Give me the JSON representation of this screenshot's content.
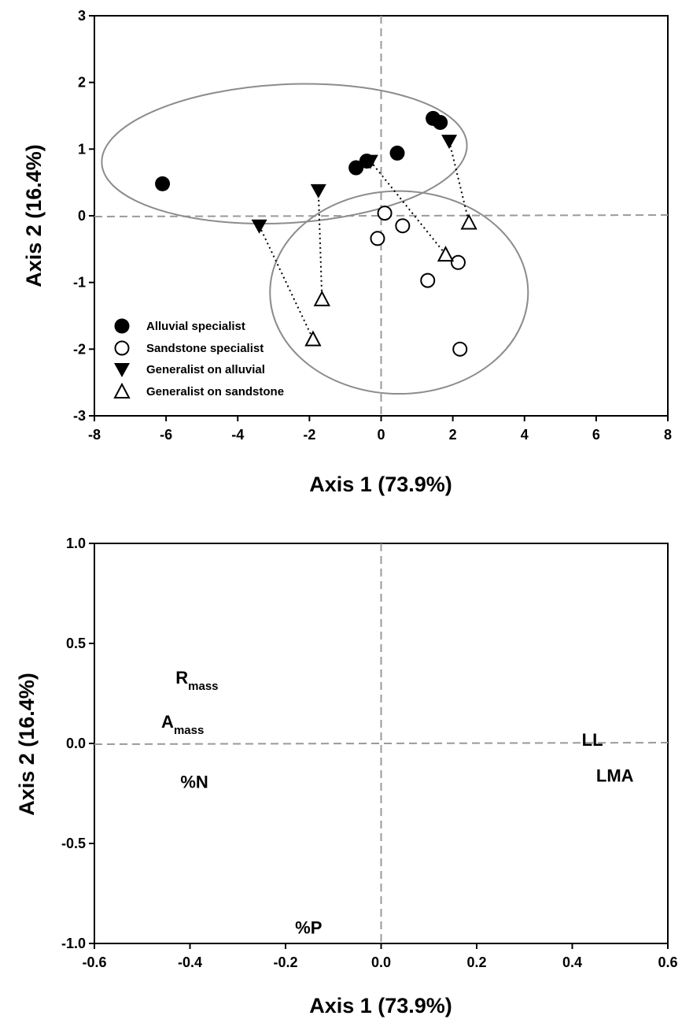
{
  "chart_data": [
    {
      "type": "scatter",
      "xlabel": "Axis 1 (73.9%)",
      "ylabel": "Axis 2 (16.4%)",
      "xlim": [
        -8,
        8
      ],
      "ylim": [
        -3,
        3
      ],
      "x_ticks": [
        "-8",
        "-6",
        "-4",
        "-2",
        "0",
        "2",
        "4",
        "6",
        "8"
      ],
      "y_ticks": [
        "3",
        "2",
        "1",
        "0",
        "-1",
        "-2",
        "-3"
      ],
      "reference_lines": "dashed at x=0 and y=0",
      "legend_position": "bottom-left",
      "series": [
        {
          "name": "Alluvial specialist",
          "marker": "filled-circle",
          "points": [
            [
              -6.1,
              0.48
            ],
            [
              -0.7,
              0.72
            ],
            [
              -0.4,
              0.82
            ],
            [
              0.45,
              0.94
            ],
            [
              1.45,
              1.46
            ],
            [
              1.65,
              1.4
            ]
          ]
        },
        {
          "name": "Sandstone specialist",
          "marker": "open-circle",
          "points": [
            [
              0.1,
              0.04
            ],
            [
              -0.1,
              -0.34
            ],
            [
              0.6,
              -0.15
            ],
            [
              2.15,
              -0.7
            ],
            [
              1.3,
              -0.97
            ],
            [
              2.2,
              -2.0
            ]
          ]
        },
        {
          "name": "Generalist on alluvial",
          "marker": "filled-triangle-down",
          "points": [
            [
              -3.4,
              -0.15
            ],
            [
              -1.75,
              0.38
            ],
            [
              -0.3,
              0.82
            ],
            [
              1.9,
              1.12
            ]
          ]
        },
        {
          "name": "Generalist on sandstone",
          "marker": "open-triangle-up",
          "points": [
            [
              -1.9,
              -1.85
            ],
            [
              -1.65,
              -1.25
            ],
            [
              1.8,
              -0.58
            ],
            [
              2.45,
              -0.1
            ]
          ]
        }
      ],
      "connectors": [
        [
          [
            -3.4,
            -0.15
          ],
          [
            -1.9,
            -1.85
          ]
        ],
        [
          [
            -1.75,
            0.38
          ],
          [
            -1.65,
            -1.25
          ]
        ],
        [
          [
            -0.3,
            0.82
          ],
          [
            1.8,
            -0.58
          ]
        ],
        [
          [
            1.9,
            1.12
          ],
          [
            2.45,
            -0.1
          ]
        ]
      ],
      "ellipses": [
        {
          "center": [
            -2.7,
            0.93
          ],
          "rx": 10.2,
          "ry": 1.04,
          "rotation_deg": 3
        },
        {
          "center": [
            0.5,
            -1.15
          ],
          "rx": 7.2,
          "ry": 1.52,
          "rotation_deg": 0
        }
      ]
    },
    {
      "type": "scatter",
      "xlabel": "Axis 1 (73.9%)",
      "ylabel": "Axis 2 (16.4%)",
      "xlim": [
        -0.6,
        0.6
      ],
      "ylim": [
        -1.0,
        1.0
      ],
      "x_ticks": [
        "-0.6",
        "-0.4",
        "-0.2",
        "0.0",
        "0.2",
        "0.4",
        "0.6"
      ],
      "y_ticks": [
        "1.0",
        "0.5",
        "0.0",
        "-0.5",
        "-1.0"
      ],
      "reference_lines": "dashed at x=0 and y=0",
      "labels": [
        {
          "main": "R",
          "sub": "mass",
          "x": -0.43,
          "y": 0.33
        },
        {
          "main": "A",
          "sub": "mass",
          "x": -0.46,
          "y": 0.11
        },
        {
          "main": "%N",
          "sub": "",
          "x": -0.42,
          "y": -0.19
        },
        {
          "main": "%P",
          "sub": "",
          "x": -0.18,
          "y": -0.92
        },
        {
          "main": "LL",
          "sub": "",
          "x": 0.42,
          "y": 0.02
        },
        {
          "main": "LMA",
          "sub": "",
          "x": 0.45,
          "y": -0.16
        }
      ]
    }
  ]
}
